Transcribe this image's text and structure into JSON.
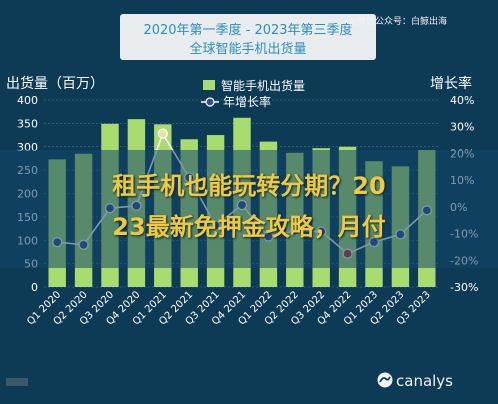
{
  "page": {
    "title_line1": "2020年第一季度 - 2023年第三季度",
    "title_line2": "全球智能手机出货量",
    "watermark": "@微信公众号：白鲸出海",
    "brand": "canalys",
    "banner_line1": "租手机也能玩转分期？20",
    "banner_line2": "23最新免押金攻略，月付"
  },
  "colors": {
    "bar": "#a9dc6e",
    "line": "#ffffff",
    "marker_fill": "#2f4f8f",
    "marker_highlight_positive": "#e8e2a6",
    "marker_highlight_negative": "#cc2a2a",
    "text": "#ffffff",
    "grid": "#5a7f97"
  },
  "chart_data": {
    "type": "bar",
    "title": "",
    "categories": [
      "Q1 2020",
      "Q2 2020",
      "Q3 2020",
      "Q4 2020",
      "Q1 2021",
      "Q2 2021",
      "Q3 2021",
      "Q4 2021",
      "Q1 2022",
      "Q2 2022",
      "Q3 2022",
      "Q4 2022",
      "Q1 2023",
      "Q2 2023",
      "Q3 2023"
    ],
    "y_left": {
      "label": "出货量（百万）",
      "min": 0,
      "max": 400,
      "ticks": [
        0,
        50,
        100,
        150,
        200,
        250,
        300,
        350,
        400
      ]
    },
    "y_right": {
      "label": "增长率",
      "min": -30,
      "max": 40,
      "ticks": [
        -30,
        -20,
        -10,
        0,
        10,
        20,
        30,
        40
      ],
      "tick_suffix": "%"
    },
    "series": [
      {
        "name": "智能手机出货量",
        "type": "bar",
        "axis": "left",
        "values": [
          273,
          285,
          349,
          359,
          348,
          316,
          325,
          362,
          311,
          287,
          297,
          300,
          269,
          258,
          293
        ]
      },
      {
        "name": "年增长率",
        "type": "line",
        "axis": "right",
        "values": [
          -13.2,
          -14.2,
          -0.5,
          0.4,
          27.4,
          11.0,
          -7.0,
          0.7,
          -11.1,
          -8.9,
          -9.2,
          -17.5,
          -13.2,
          -10.3,
          -1.3
        ],
        "highlight": [
          4,
          11
        ]
      }
    ],
    "legend": {
      "position": "top-center"
    },
    "grid": true
  }
}
